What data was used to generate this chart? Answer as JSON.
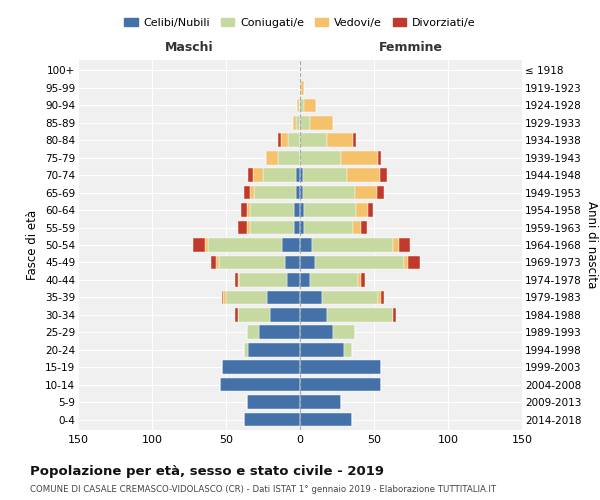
{
  "age_groups": [
    "0-4",
    "5-9",
    "10-14",
    "15-19",
    "20-24",
    "25-29",
    "30-34",
    "35-39",
    "40-44",
    "45-49",
    "50-54",
    "55-59",
    "60-64",
    "65-69",
    "70-74",
    "75-79",
    "80-84",
    "85-89",
    "90-94",
    "95-99",
    "100+"
  ],
  "birth_years": [
    "2014-2018",
    "2009-2013",
    "2004-2008",
    "1999-2003",
    "1994-1998",
    "1989-1993",
    "1984-1988",
    "1979-1983",
    "1974-1978",
    "1969-1973",
    "1964-1968",
    "1959-1963",
    "1954-1958",
    "1949-1953",
    "1944-1948",
    "1939-1943",
    "1934-1938",
    "1929-1933",
    "1924-1928",
    "1919-1923",
    "≤ 1918"
  ],
  "males": {
    "celibi": [
      38,
      36,
      54,
      53,
      35,
      28,
      20,
      22,
      9,
      10,
      12,
      4,
      4,
      3,
      3,
      0,
      0,
      0,
      0,
      0,
      0
    ],
    "coniugati": [
      0,
      0,
      0,
      0,
      3,
      8,
      22,
      28,
      32,
      45,
      50,
      30,
      30,
      28,
      22,
      15,
      8,
      3,
      1,
      0,
      0
    ],
    "vedovi": [
      0,
      0,
      0,
      0,
      0,
      0,
      0,
      2,
      1,
      2,
      2,
      2,
      2,
      3,
      7,
      8,
      5,
      2,
      1,
      0,
      0
    ],
    "divorziati": [
      0,
      0,
      0,
      0,
      0,
      0,
      2,
      1,
      2,
      3,
      8,
      6,
      4,
      4,
      3,
      0,
      2,
      0,
      0,
      0,
      0
    ]
  },
  "females": {
    "nubili": [
      35,
      28,
      55,
      55,
      30,
      22,
      18,
      15,
      7,
      10,
      8,
      3,
      3,
      2,
      2,
      0,
      0,
      0,
      0,
      0,
      0
    ],
    "coniugate": [
      0,
      0,
      0,
      0,
      5,
      15,
      45,
      38,
      32,
      60,
      55,
      33,
      35,
      35,
      30,
      28,
      18,
      7,
      3,
      1,
      0
    ],
    "vedove": [
      0,
      0,
      0,
      0,
      0,
      0,
      0,
      2,
      2,
      3,
      4,
      5,
      8,
      15,
      22,
      25,
      18,
      15,
      8,
      2,
      0
    ],
    "divorziate": [
      0,
      0,
      0,
      0,
      0,
      0,
      2,
      2,
      3,
      8,
      7,
      4,
      3,
      5,
      5,
      2,
      2,
      0,
      0,
      0,
      0
    ]
  },
  "colors": {
    "celibi_nubili": "#4472a8",
    "coniugati": "#c5d9a0",
    "vedovi": "#f5c26b",
    "divorziati": "#c0392b"
  },
  "title": "Popolazione per età, sesso e stato civile - 2019",
  "subtitle": "COMUNE DI CASALE CREMASCO-VIDOLASCO (CR) - Dati ISTAT 1° gennaio 2019 - Elaborazione TUTTITALIA.IT",
  "xlabel_maschi": "Maschi",
  "xlabel_femmine": "Femmine",
  "ylabel_left": "Fasce di età",
  "ylabel_right": "Anni di nascita",
  "xlim": 150,
  "bg_color": "#ffffff",
  "grid_color": "#cccccc",
  "legend_labels": [
    "Celibi/Nubili",
    "Coniugati/e",
    "Vedovi/e",
    "Divorziati/e"
  ]
}
